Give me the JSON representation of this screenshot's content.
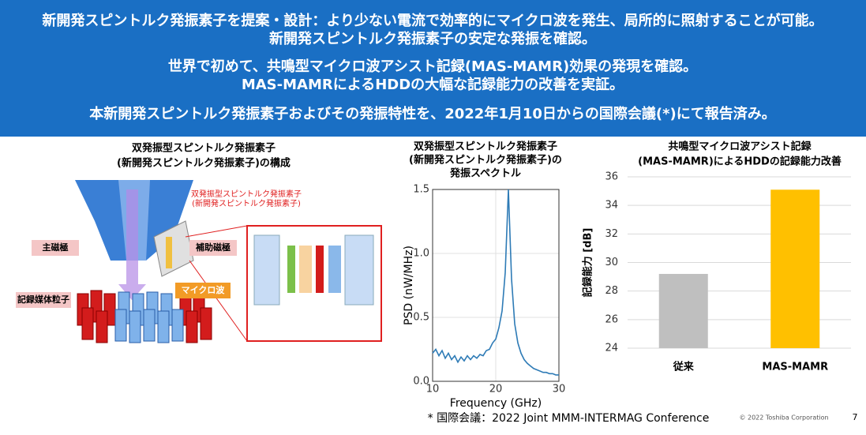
{
  "header": {
    "lines": [
      "新開発スピントルク発振素子を提案・設計：より少ない電流で効率的にマイクロ波を発生、局所的に照射することが可能。",
      "新開発スピントルク発振素子の安定な発振を確認。",
      "世界で初めて、共鳴型マイクロ波アシスト記録(MAS-MAMR)効果の発現を確認。",
      "MAS-MAMRによるHDDの大幅な記録能力の改善を実証。",
      "本新開発スピントルク発振素子およびその発振特性を、2022年1月10日からの国際会議(*)にて報告済み。"
    ]
  },
  "diagram": {
    "title": [
      "双発振型スピントルク発振素子",
      "(新開発スピントルク発振素子)の構成"
    ],
    "device_label": [
      "双発振型スピントルク発振素子",
      "(新開発スピントルク発振素子)"
    ],
    "main_pole": "主磁極",
    "aux_pole": "補助磁極",
    "microwave": "マイクロ波",
    "media": "記録媒体粒子"
  },
  "chart_data": [
    {
      "type": "line",
      "title": [
        "双発振型スピントルク発振素子",
        "(新開発スピントルク発振素子)の",
        "発振スペクトル"
      ],
      "x_label": "Frequency (GHz)",
      "y_label": "PSD (nW/MHz)",
      "color": "#2e7bb6",
      "grid": true,
      "x": [
        10,
        10.5,
        11,
        11.5,
        12,
        12.5,
        13,
        13.5,
        14,
        14.5,
        15,
        15.5,
        16,
        16.5,
        17,
        17.5,
        18,
        18.5,
        19,
        19.5,
        20,
        20.5,
        21,
        21.5,
        22,
        22.5,
        23,
        23.5,
        24,
        24.5,
        25,
        25.5,
        26,
        26.5,
        27,
        27.5,
        28,
        28.5,
        29,
        29.5,
        30
      ],
      "values": [
        0.22,
        0.25,
        0.2,
        0.24,
        0.18,
        0.22,
        0.17,
        0.2,
        0.15,
        0.19,
        0.16,
        0.2,
        0.17,
        0.2,
        0.18,
        0.21,
        0.2,
        0.24,
        0.25,
        0.3,
        0.33,
        0.42,
        0.55,
        0.85,
        1.5,
        0.8,
        0.45,
        0.3,
        0.22,
        0.17,
        0.14,
        0.12,
        0.1,
        0.09,
        0.08,
        0.07,
        0.07,
        0.06,
        0.06,
        0.05,
        0.05
      ],
      "xlim": [
        10,
        30
      ],
      "xticks": [
        10,
        20,
        30
      ],
      "ylim": [
        0,
        1.5
      ],
      "yticks": [
        {
          "value": 0,
          "label": "0.0"
        },
        0.5,
        {
          "value": 1,
          "label": "1.0"
        },
        1.5
      ]
    },
    {
      "type": "bar",
      "title": [
        "共鳴型マイクロ波アシスト記録",
        "(MAS-MAMR)によるHDDの記録能力改善"
      ],
      "y_label": "記録能力 [dB]",
      "categories": [
        "従来",
        "MAS-MAMR"
      ],
      "values": [
        29.2,
        35.1
      ],
      "colors": [
        "#bfbfbf",
        "#ffc000"
      ],
      "grid": true,
      "ylim": [
        24,
        36
      ],
      "yticks": [
        24,
        26,
        28,
        30,
        32,
        34,
        36
      ]
    }
  ],
  "footer": {
    "note": "* 国際会議：2022 Joint MMM-INTERMAG Conference",
    "copyright": "© 2022 Toshiba Corporation",
    "page": "7"
  }
}
